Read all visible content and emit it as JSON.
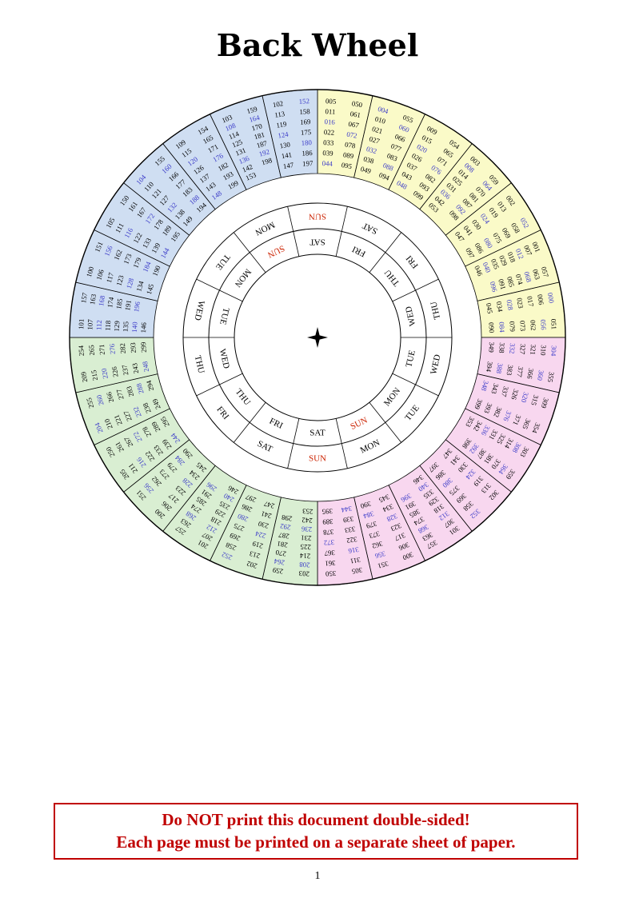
{
  "page": {
    "title": "Back Wheel",
    "warning_line1": "Do NOT print this document double-sided!",
    "warning_line2": "Each page must be printed on a separate sheet of paper.",
    "page_number": "1"
  },
  "colors": {
    "quadrant_yellow": "#fafac8",
    "quadrant_blue": "#cfdef2",
    "quadrant_green": "#d9eed2",
    "quadrant_pink": "#f8d7ef",
    "leap_year_text": "#3b3bc8",
    "year_text": "#000000",
    "sunday_text": "#cc2200",
    "day_text": "#000000",
    "warning_text": "#c00000"
  },
  "wheel": {
    "outer_day_ring": [
      "SUN",
      "SAT",
      "FRI",
      "THU",
      "WED",
      "TUE",
      "MON",
      "SUN",
      "SAT",
      "FRI",
      "THU",
      "WED",
      "TUE",
      "MON"
    ],
    "inner_day_ring": [
      "SAT",
      "FRI",
      "THU",
      "WED",
      "TUE",
      "MON",
      "SUN",
      "SAT",
      "FRI",
      "THU",
      "WED",
      "TUE",
      "MON",
      "SUN"
    ],
    "sectors": [
      {
        "quadrant": "yellow",
        "doomsday": "MON",
        "years": [
          "005",
          "011",
          "016",
          "022",
          "033",
          "039",
          "044",
          "050",
          "061",
          "067",
          "072",
          "078",
          "089",
          "095"
        ],
        "leap_years": [
          "016",
          "044",
          "072"
        ]
      },
      {
        "quadrant": "yellow",
        "doomsday": "SUN",
        "years": [
          "004",
          "010",
          "021",
          "027",
          "032",
          "038",
          "049",
          "055",
          "060",
          "066",
          "077",
          "083",
          "088",
          "094"
        ],
        "leap_years": [
          "004",
          "032",
          "060",
          "088"
        ]
      },
      {
        "quadrant": "yellow",
        "doomsday": "SAT",
        "years": [
          "009",
          "015",
          "020",
          "026",
          "037",
          "043",
          "048",
          "054",
          "065",
          "071",
          "076",
          "082",
          "093",
          "099"
        ],
        "leap_years": [
          "020",
          "048",
          "076"
        ]
      },
      {
        "quadrant": "yellow",
        "doomsday": "FRI",
        "years": [
          "003",
          "008",
          "014",
          "025",
          "031",
          "036",
          "042",
          "053",
          "059",
          "064",
          "070",
          "081",
          "087",
          "092",
          "098"
        ],
        "leap_years": [
          "008",
          "036",
          "064",
          "092"
        ]
      },
      {
        "quadrant": "yellow",
        "doomsday": "THU",
        "years": [
          "002",
          "013",
          "019",
          "024",
          "030",
          "041",
          "047",
          "052",
          "058",
          "069",
          "075",
          "080",
          "086",
          "097"
        ],
        "leap_years": [
          "024",
          "052",
          "080"
        ]
      },
      {
        "quadrant": "yellow",
        "doomsday": "WED",
        "years": [
          "001",
          "007",
          "012",
          "018",
          "029",
          "035",
          "040",
          "046",
          "057",
          "063",
          "068",
          "074",
          "085",
          "091",
          "096"
        ],
        "leap_years": [
          "012",
          "040",
          "068",
          "096"
        ]
      },
      {
        "quadrant": "yellow",
        "doomsday": "TUE",
        "years": [
          "000",
          "006",
          "017",
          "023",
          "028",
          "034",
          "045",
          "051",
          "056",
          "062",
          "073",
          "079",
          "084",
          "090"
        ],
        "leap_years": [
          "000",
          "028",
          "056",
          "084"
        ]
      },
      {
        "quadrant": "pink",
        "doomsday": "MON",
        "years": [
          "304",
          "310",
          "321",
          "327",
          "332",
          "338",
          "349",
          "355",
          "360",
          "366",
          "377",
          "383",
          "388",
          "394"
        ],
        "leap_years": [
          "304",
          "332",
          "360",
          "388"
        ]
      },
      {
        "quadrant": "pink",
        "doomsday": "SUN",
        "years": [
          "309",
          "315",
          "320",
          "326",
          "337",
          "343",
          "348",
          "354",
          "365",
          "371",
          "376",
          "382",
          "393",
          "399"
        ],
        "leap_years": [
          "320",
          "348",
          "376"
        ]
      },
      {
        "quadrant": "pink",
        "doomsday": "SAT",
        "years": [
          "303",
          "308",
          "314",
          "325",
          "331",
          "336",
          "342",
          "353",
          "359",
          "364",
          "370",
          "381",
          "387",
          "392",
          "398"
        ],
        "leap_years": [
          "308",
          "336",
          "364",
          "392"
        ]
      },
      {
        "quadrant": "pink",
        "doomsday": "FRI",
        "years": [
          "302",
          "313",
          "319",
          "324",
          "330",
          "341",
          "347",
          "352",
          "358",
          "369",
          "375",
          "380",
          "386",
          "397"
        ],
        "leap_years": [
          "324",
          "352",
          "380"
        ]
      },
      {
        "quadrant": "pink",
        "doomsday": "THU",
        "years": [
          "301",
          "307",
          "312",
          "318",
          "329",
          "335",
          "340",
          "346",
          "357",
          "363",
          "368",
          "374",
          "385",
          "391",
          "396"
        ],
        "leap_years": [
          "312",
          "340",
          "368",
          "396"
        ]
      },
      {
        "quadrant": "pink",
        "doomsday": "WED",
        "years": [
          "300",
          "306",
          "317",
          "323",
          "328",
          "334",
          "345",
          "351",
          "356",
          "362",
          "373",
          "379",
          "384",
          "390"
        ],
        "leap_years": [
          "328",
          "356",
          "384"
        ]
      },
      {
        "quadrant": "pink",
        "doomsday": "TUE",
        "years": [
          "305",
          "311",
          "316",
          "322",
          "333",
          "339",
          "344",
          "350",
          "361",
          "367",
          "372",
          "378",
          "389",
          "395"
        ],
        "leap_years": [
          "316",
          "344",
          "372"
        ]
      },
      {
        "quadrant": "green",
        "doomsday": "MON",
        "years": [
          "203",
          "208",
          "214",
          "225",
          "231",
          "236",
          "242",
          "253",
          "259",
          "264",
          "270",
          "281",
          "287",
          "292",
          "298"
        ],
        "leap_years": [
          "208",
          "236",
          "264",
          "292"
        ]
      },
      {
        "quadrant": "green",
        "doomsday": "SUN",
        "years": [
          "202",
          "213",
          "219",
          "224",
          "230",
          "241",
          "247",
          "252",
          "258",
          "269",
          "275",
          "280",
          "286",
          "297"
        ],
        "leap_years": [
          "224",
          "252",
          "280"
        ]
      },
      {
        "quadrant": "green",
        "doomsday": "SAT",
        "years": [
          "201",
          "207",
          "212",
          "218",
          "229",
          "235",
          "240",
          "246",
          "257",
          "263",
          "268",
          "274",
          "285",
          "291",
          "296"
        ],
        "leap_years": [
          "212",
          "240",
          "268",
          "296"
        ]
      },
      {
        "quadrant": "green",
        "doomsday": "FRI",
        "years": [
          "200",
          "206",
          "217",
          "223",
          "228",
          "234",
          "245",
          "251",
          "256",
          "262",
          "273",
          "279",
          "284",
          "290"
        ],
        "leap_years": [
          "228",
          "256",
          "284"
        ]
      },
      {
        "quadrant": "green",
        "doomsday": "THU",
        "years": [
          "205",
          "211",
          "216",
          "222",
          "233",
          "239",
          "244",
          "250",
          "261",
          "267",
          "272",
          "278",
          "289",
          "295"
        ],
        "leap_years": [
          "216",
          "244",
          "272"
        ]
      },
      {
        "quadrant": "green",
        "doomsday": "WED",
        "years": [
          "204",
          "210",
          "221",
          "227",
          "232",
          "238",
          "249",
          "255",
          "260",
          "266",
          "277",
          "283",
          "288",
          "294"
        ],
        "leap_years": [
          "204",
          "232",
          "260",
          "288"
        ]
      },
      {
        "quadrant": "green",
        "doomsday": "TUE",
        "years": [
          "209",
          "215",
          "220",
          "226",
          "237",
          "243",
          "248",
          "254",
          "265",
          "271",
          "276",
          "282",
          "293",
          "299"
        ],
        "leap_years": [
          "220",
          "248",
          "276"
        ]
      },
      {
        "quadrant": "blue",
        "doomsday": "MON",
        "years": [
          "101",
          "107",
          "112",
          "118",
          "129",
          "135",
          "140",
          "146",
          "157",
          "163",
          "168",
          "174",
          "185",
          "191",
          "196"
        ],
        "leap_years": [
          "112",
          "140",
          "168",
          "196"
        ]
      },
      {
        "quadrant": "blue",
        "doomsday": "SUN",
        "years": [
          "100",
          "106",
          "117",
          "123",
          "128",
          "134",
          "145",
          "151",
          "156",
          "162",
          "173",
          "179",
          "184",
          "190"
        ],
        "leap_years": [
          "128",
          "156",
          "184"
        ]
      },
      {
        "quadrant": "blue",
        "doomsday": "SAT",
        "years": [
          "105",
          "111",
          "116",
          "122",
          "133",
          "139",
          "144",
          "150",
          "161",
          "167",
          "172",
          "178",
          "189",
          "195"
        ],
        "leap_years": [
          "116",
          "144",
          "172"
        ]
      },
      {
        "quadrant": "blue",
        "doomsday": "FRI",
        "years": [
          "104",
          "110",
          "121",
          "127",
          "132",
          "138",
          "149",
          "155",
          "160",
          "166",
          "177",
          "183",
          "188",
          "194"
        ],
        "leap_years": [
          "104",
          "132",
          "160",
          "188"
        ]
      },
      {
        "quadrant": "blue",
        "doomsday": "THU",
        "years": [
          "109",
          "115",
          "120",
          "126",
          "137",
          "143",
          "148",
          "154",
          "165",
          "171",
          "176",
          "182",
          "193",
          "199"
        ],
        "leap_years": [
          "120",
          "148",
          "176"
        ]
      },
      {
        "quadrant": "blue",
        "doomsday": "WED",
        "years": [
          "103",
          "108",
          "114",
          "125",
          "131",
          "136",
          "142",
          "153",
          "159",
          "164",
          "170",
          "181",
          "187",
          "192",
          "198"
        ],
        "leap_years": [
          "108",
          "136",
          "164",
          "192"
        ]
      },
      {
        "quadrant": "blue",
        "doomsday": "TUE",
        "years": [
          "102",
          "113",
          "119",
          "124",
          "130",
          "141",
          "147",
          "152",
          "158",
          "169",
          "175",
          "180",
          "186",
          "197"
        ],
        "leap_years": [
          "124",
          "152",
          "180"
        ]
      }
    ]
  }
}
